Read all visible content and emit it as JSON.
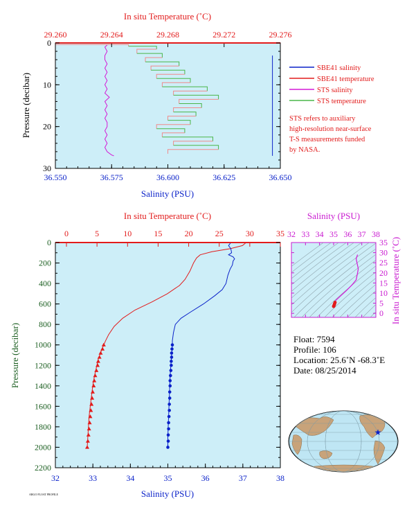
{
  "colors": {
    "salinity": "#0a21c9",
    "temperature": "#e21b1b",
    "sts_salinity": "#d41ad6",
    "sts_temperature": "#49b549",
    "sts_temperature_alt": "#f08a8a",
    "plot_bg": "#cdeef8",
    "ts_axis": "#c91ad0",
    "pressure_label": "#1b5e20",
    "land": "#c8a37a",
    "ocean": "#bfe6f4"
  },
  "chart_data": [
    {
      "type": "line",
      "title": "",
      "xlabel": "Salinity (PSU)",
      "x2label": "In situ Temperature (˚C)",
      "ylabel": "Pressure (decibar)",
      "xlim": [
        36.55,
        36.65
      ],
      "x2lim": [
        29.26,
        29.276
      ],
      "ylim": [
        30,
        0
      ],
      "x_ticks": [
        "36.550",
        "36.575",
        "36.600",
        "36.625",
        "36.650"
      ],
      "x2_ticks": [
        "29.260",
        "29.264",
        "29.268",
        "29.272",
        "29.276"
      ],
      "y_ticks": [
        "0",
        "10",
        "20",
        "30"
      ],
      "legend": [
        {
          "label": "SBE41 salinity",
          "color_key": "salinity"
        },
        {
          "label": "SBE41 temperature",
          "color_key": "temperature"
        },
        {
          "label": "STS salinity",
          "color_key": "sts_salinity"
        },
        {
          "label": "STS temperature",
          "color_key": "sts_temperature"
        }
      ],
      "note": [
        "STS refers to auxiliary",
        "high-resolution near-surface",
        "T-S measurements funded",
        "by NASA."
      ],
      "series": [
        {
          "name": "STS salinity",
          "axis": "salinity",
          "color_key": "sts_salinity",
          "points": [
            [
              36.573,
              0.5
            ],
            [
              36.572,
              1.0
            ],
            [
              36.573,
              2.0
            ],
            [
              36.572,
              3.0
            ],
            [
              36.572,
              4.0
            ],
            [
              36.573,
              5.0
            ],
            [
              36.572,
              6.0
            ],
            [
              36.573,
              7.0
            ],
            [
              36.572,
              8.0
            ],
            [
              36.573,
              9.0
            ],
            [
              36.572,
              10.0
            ],
            [
              36.573,
              11.0
            ],
            [
              36.572,
              12.0
            ],
            [
              36.574,
              13.0
            ],
            [
              36.572,
              14.0
            ],
            [
              36.573,
              15.0
            ],
            [
              36.572,
              16.0
            ],
            [
              36.573,
              17.0
            ],
            [
              36.572,
              18.0
            ],
            [
              36.573,
              19.0
            ],
            [
              36.573,
              20.0
            ],
            [
              36.572,
              21.0
            ],
            [
              36.573,
              22.0
            ],
            [
              36.572,
              23.0
            ],
            [
              36.573,
              24.0
            ],
            [
              36.572,
              25.0
            ],
            [
              36.573,
              26.0
            ],
            [
              36.575,
              26.8
            ],
            [
              36.576,
              27.0
            ]
          ]
        },
        {
          "name": "SBE41 salinity",
          "axis": "salinity",
          "color_key": "salinity",
          "points": [
            [
              36.6465,
              3.0
            ],
            [
              36.6465,
              27.0
            ]
          ]
        },
        {
          "name": "SBE41 temperature",
          "axis": "temperature",
          "color_key": "temperature",
          "points": [
            [
              29.26,
              0.0
            ],
            [
              29.276,
              0.0
            ]
          ]
        },
        {
          "name": "STS temperature",
          "axis": "temperature",
          "color_key": "sts_temperature",
          "points": [
            [
              29.26,
              0.4
            ],
            [
              29.2652,
              0.8
            ],
            [
              29.2672,
              1.5
            ],
            [
              29.2658,
              2.5
            ],
            [
              29.2676,
              3.5
            ],
            [
              29.2664,
              4.5
            ],
            [
              29.2688,
              5.5
            ],
            [
              29.2668,
              6.5
            ],
            [
              29.2692,
              7.5
            ],
            [
              29.2672,
              8.5
            ],
            [
              29.2696,
              9.5
            ],
            [
              29.2676,
              10.5
            ],
            [
              29.2708,
              11.5
            ],
            [
              29.2684,
              12.5
            ],
            [
              29.2716,
              13.5
            ],
            [
              29.2688,
              14.5
            ],
            [
              29.2704,
              15.5
            ],
            [
              29.2684,
              16.5
            ],
            [
              29.27,
              17.5
            ],
            [
              29.268,
              18.5
            ],
            [
              29.2696,
              19.5
            ],
            [
              29.2672,
              20.5
            ],
            [
              29.2692,
              21.5
            ],
            [
              29.2676,
              22.5
            ],
            [
              29.2712,
              23.5
            ],
            [
              29.2684,
              24.5
            ],
            [
              29.2716,
              25.5
            ],
            [
              29.268,
              26.5
            ]
          ]
        }
      ]
    },
    {
      "type": "line",
      "title": "",
      "xlabel": "Salinity (PSU)",
      "x2label": "In situ Temperature (˚C)",
      "ylabel": "Pressure (decibar)",
      "xlim": [
        32,
        38
      ],
      "x2lim": [
        0,
        35
      ],
      "ylim": [
        2200,
        0
      ],
      "x_ticks": [
        "32",
        "33",
        "34",
        "35",
        "36",
        "37",
        "38"
      ],
      "x2_ticks": [
        "0",
        "5",
        "10",
        "15",
        "20",
        "25",
        "30",
        "35"
      ],
      "y_ticks": [
        "0",
        "200",
        "400",
        "600",
        "800",
        "1000",
        "1200",
        "1400",
        "1600",
        "1800",
        "2000",
        "2200"
      ],
      "series": [
        {
          "name": "SBE41 temperature",
          "axis": "temperature",
          "color_key": "temperature",
          "points": [
            [
              29.4,
              0
            ],
            [
              28.8,
              30
            ],
            [
              26.8,
              60
            ],
            [
              23.8,
              90
            ],
            [
              21.9,
              120
            ],
            [
              21.3,
              150
            ],
            [
              20.8,
              200
            ],
            [
              20.2,
              280
            ],
            [
              19.4,
              360
            ],
            [
              18.5,
              420
            ],
            [
              16.5,
              500
            ],
            [
              14.0,
              580
            ],
            [
              11.2,
              660
            ],
            [
              9.2,
              740
            ],
            [
              7.8,
              820
            ],
            [
              6.9,
              900
            ],
            [
              6.4,
              960
            ],
            [
              6.1,
              1000
            ],
            [
              5.7,
              1060
            ],
            [
              5.2,
              1140
            ],
            [
              4.9,
              1220
            ],
            [
              4.6,
              1300
            ],
            [
              4.3,
              1400
            ],
            [
              4.1,
              1500
            ],
            [
              3.9,
              1600
            ],
            [
              3.7,
              1700
            ],
            [
              3.6,
              1800
            ],
            [
              3.5,
              1900
            ],
            [
              3.4,
              2000
            ]
          ],
          "markers": [
            [
              6.1,
              1000
            ],
            [
              5.9,
              1040
            ],
            [
              5.6,
              1080
            ],
            [
              5.4,
              1120
            ],
            [
              5.2,
              1160
            ],
            [
              5.1,
              1200
            ],
            [
              4.9,
              1250
            ],
            [
              4.7,
              1300
            ],
            [
              4.55,
              1350
            ],
            [
              4.45,
              1400
            ],
            [
              4.3,
              1460
            ],
            [
              4.2,
              1520
            ],
            [
              4.1,
              1580
            ],
            [
              4.0,
              1640
            ],
            [
              3.9,
              1700
            ],
            [
              3.8,
              1760
            ],
            [
              3.7,
              1820
            ],
            [
              3.6,
              1880
            ],
            [
              3.5,
              1940
            ],
            [
              3.4,
              2000
            ]
          ]
        },
        {
          "name": "SBE41 salinity",
          "axis": "salinity",
          "color_key": "salinity",
          "points": [
            [
              36.68,
              0
            ],
            [
              36.62,
              30
            ],
            [
              36.68,
              60
            ],
            [
              36.7,
              100
            ],
            [
              36.62,
              120
            ],
            [
              36.74,
              140
            ],
            [
              36.78,
              160
            ],
            [
              36.74,
              180
            ],
            [
              36.72,
              220
            ],
            [
              36.66,
              260
            ],
            [
              36.6,
              320
            ],
            [
              36.55,
              400
            ],
            [
              36.45,
              460
            ],
            [
              36.25,
              520
            ],
            [
              35.95,
              600
            ],
            [
              35.6,
              680
            ],
            [
              35.35,
              740
            ],
            [
              35.2,
              800
            ],
            [
              35.15,
              880
            ],
            [
              35.12,
              960
            ],
            [
              35.12,
              1000
            ],
            [
              35.1,
              1100
            ],
            [
              35.08,
              1200
            ],
            [
              35.06,
              1300
            ],
            [
              35.05,
              1400
            ],
            [
              35.04,
              1500
            ],
            [
              35.03,
              1600
            ],
            [
              35.02,
              1700
            ],
            [
              35.01,
              1800
            ],
            [
              35.0,
              1900
            ],
            [
              35.0,
              2000
            ]
          ],
          "markers": [
            [
              35.12,
              1000
            ],
            [
              35.11,
              1040
            ],
            [
              35.1,
              1080
            ],
            [
              35.1,
              1120
            ],
            [
              35.09,
              1160
            ],
            [
              35.09,
              1200
            ],
            [
              35.08,
              1250
            ],
            [
              35.07,
              1300
            ],
            [
              35.06,
              1350
            ],
            [
              35.06,
              1400
            ],
            [
              35.05,
              1460
            ],
            [
              35.05,
              1520
            ],
            [
              35.04,
              1580
            ],
            [
              35.04,
              1640
            ],
            [
              35.03,
              1700
            ],
            [
              35.02,
              1760
            ],
            [
              35.02,
              1820
            ],
            [
              35.01,
              1880
            ],
            [
              35.01,
              1940
            ],
            [
              35.0,
              2000
            ]
          ]
        }
      ]
    },
    {
      "type": "scatter",
      "title": "",
      "xlabel": "Salinity (PSU)",
      "ylabel": "In situ Temperature (˚C)",
      "xlim": [
        32,
        38
      ],
      "ylim": [
        -2,
        35
      ],
      "x_ticks": [
        "32",
        "33",
        "34",
        "35",
        "36",
        "37",
        "38"
      ],
      "y_ticks": [
        "0",
        "5",
        "10",
        "15",
        "20",
        "25",
        "30",
        "35"
      ],
      "series": [
        {
          "name": "",
          "color_key": "sts_salinity",
          "points": [
            [
              36.7,
              29.0
            ],
            [
              36.6,
              27.0
            ],
            [
              36.75,
              22.0
            ],
            [
              36.7,
              20.0
            ],
            [
              36.6,
              16.5
            ],
            [
              36.3,
              14.0
            ],
            [
              35.9,
              11.2
            ],
            [
              35.4,
              8.0
            ],
            [
              35.15,
              6.4
            ],
            [
              35.1,
              5.4
            ],
            [
              35.07,
              4.8
            ],
            [
              35.05,
              4.3
            ],
            [
              35.03,
              3.9
            ],
            [
              35.01,
              3.6
            ],
            [
              35.0,
              3.4
            ]
          ]
        }
      ]
    }
  ],
  "float_info": {
    "float": "Float:  7594",
    "profile": "Profile:  106",
    "location": "Location:  25.6˚N  -68.3˚E",
    "date": "Date:  08/25/2014"
  },
  "footer_text": "ARGO FLOAT PROFILE"
}
